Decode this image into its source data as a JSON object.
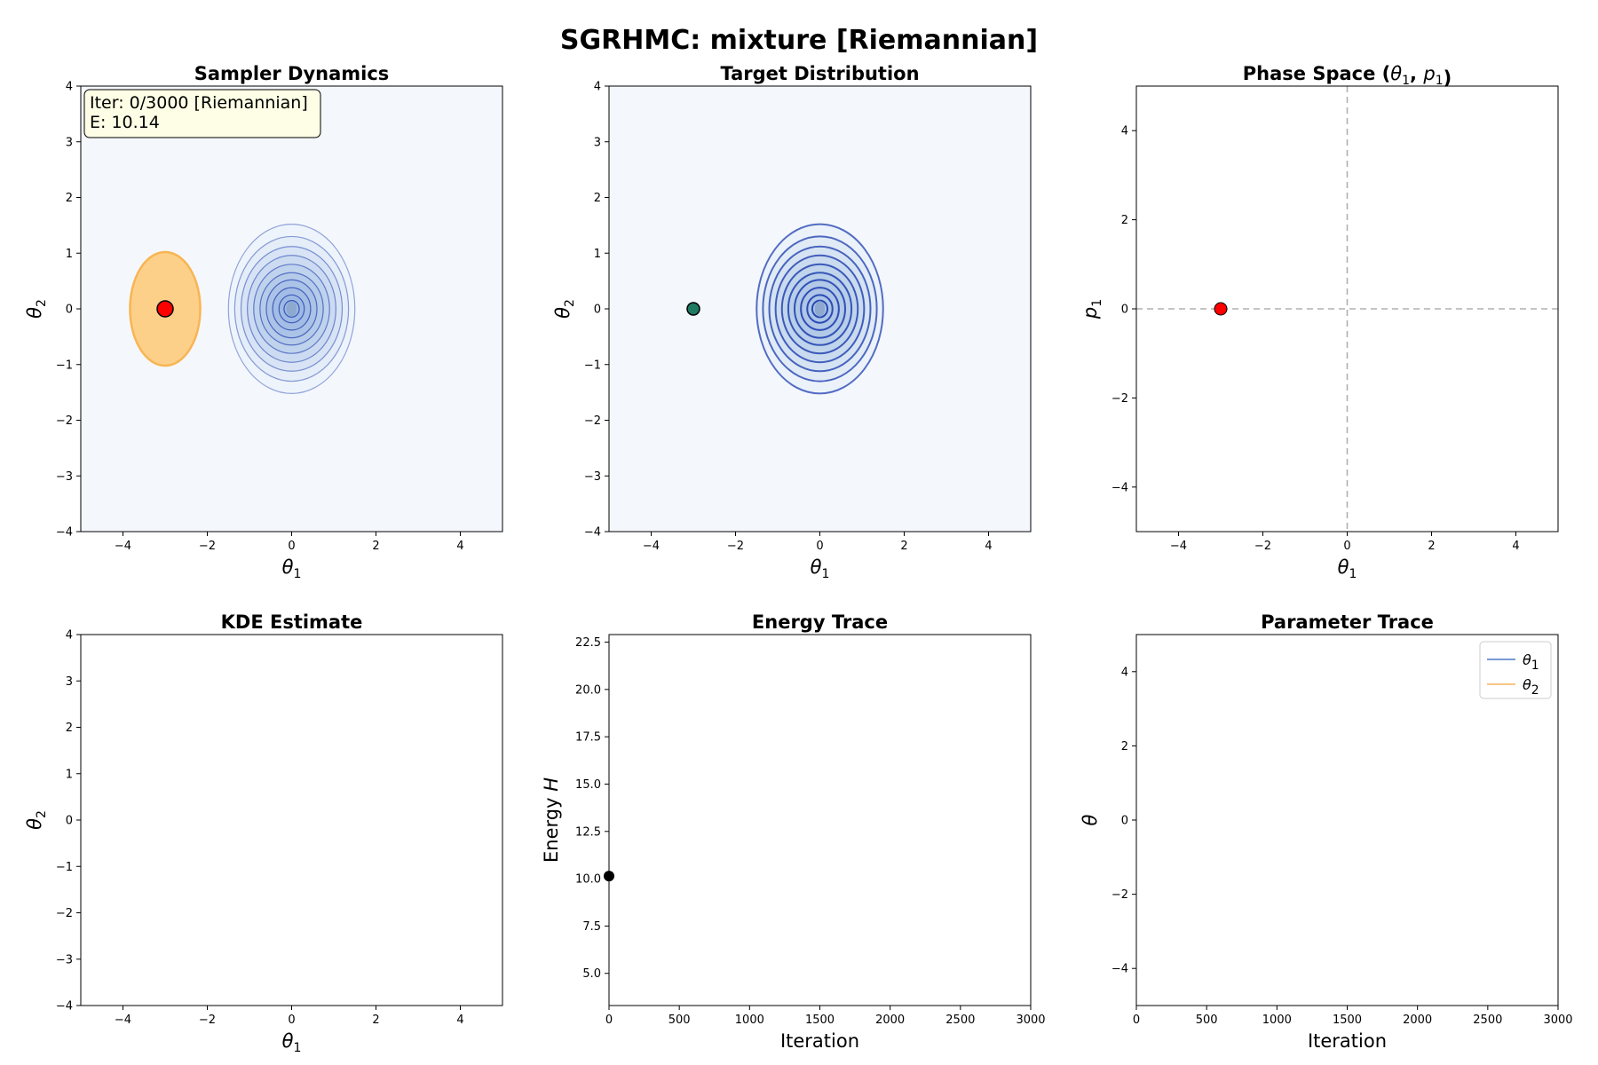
{
  "figure": {
    "title": "SGRHMC: mixture [Riemannian]"
  },
  "colors": {
    "density_fill": "#f4f8fd",
    "contour": "#1f3fb0",
    "contour_fill_center": "#8ea9cf",
    "sampler_point": "#ff0000",
    "target_point": "#1e7b62",
    "uncertainty_fill": "#fdd08a",
    "uncertainty_edge": "#f8b553",
    "theta1_line": "#4c78c8",
    "theta2_line": "#f7b45a",
    "info_box_bg": "#fefee6"
  },
  "chart_data": [
    {
      "id": "sampler",
      "type": "contour",
      "title": "Sampler Dynamics",
      "xlabel": "θ1",
      "ylabel": "θ2",
      "xlim": [
        -5,
        5
      ],
      "ylim": [
        -4,
        4
      ],
      "xticks": [
        -4,
        -2,
        0,
        2,
        4
      ],
      "yticks": [
        -4,
        -3,
        -2,
        -1,
        0,
        1,
        2,
        3,
        4
      ],
      "mode_center": [
        0,
        0
      ],
      "contour_semi_axes": [
        [
          1.5,
          1.52
        ],
        [
          1.35,
          1.3
        ],
        [
          1.2,
          1.12
        ],
        [
          1.05,
          0.96
        ],
        [
          0.9,
          0.8
        ],
        [
          0.75,
          0.65
        ],
        [
          0.6,
          0.52
        ],
        [
          0.45,
          0.38
        ],
        [
          0.3,
          0.25
        ],
        [
          0.18,
          0.15
        ]
      ],
      "current_point": [
        -3,
        0
      ],
      "uncertainty_ellipse": {
        "center": [
          -3,
          0
        ],
        "semi_axes": [
          0.85,
          0.85
        ]
      },
      "info_box": {
        "line1": "Iter: 0/3000 [Riemannian]",
        "line2": "E: 10.14"
      }
    },
    {
      "id": "target",
      "type": "contour",
      "title": "Target Distribution",
      "xlabel": "θ1",
      "ylabel": "θ2",
      "xlim": [
        -5,
        5
      ],
      "ylim": [
        -4,
        4
      ],
      "xticks": [
        -4,
        -2,
        0,
        2,
        4
      ],
      "yticks": [
        -4,
        -3,
        -2,
        -1,
        0,
        1,
        2,
        3,
        4
      ],
      "mode_center": [
        0,
        0
      ],
      "contour_semi_axes": [
        [
          1.5,
          1.52
        ],
        [
          1.35,
          1.3
        ],
        [
          1.2,
          1.12
        ],
        [
          1.05,
          0.96
        ],
        [
          0.9,
          0.8
        ],
        [
          0.75,
          0.65
        ],
        [
          0.6,
          0.52
        ],
        [
          0.45,
          0.38
        ],
        [
          0.3,
          0.25
        ],
        [
          0.18,
          0.15
        ]
      ],
      "current_point": [
        -3,
        0
      ]
    },
    {
      "id": "phase",
      "type": "scatter",
      "title_prefix": "Phase Space (",
      "title_suffix": ")",
      "title_vars": [
        "θ1",
        "p1"
      ],
      "xlabel": "θ1",
      "ylabel": "p1",
      "xlim": [
        -5,
        5
      ],
      "ylim": [
        -5,
        5
      ],
      "xticks": [
        -4,
        -2,
        0,
        2,
        4
      ],
      "yticks": [
        -4,
        -2,
        0,
        2,
        4
      ],
      "reference_lines": {
        "x": 0,
        "y": 0
      },
      "points": [
        [
          -3,
          0
        ]
      ]
    },
    {
      "id": "kde",
      "type": "heatmap",
      "title": "KDE Estimate",
      "xlabel": "θ1",
      "ylabel": "θ2",
      "xlim": [
        -5,
        5
      ],
      "ylim": [
        -4,
        4
      ],
      "xticks": [
        -4,
        -2,
        0,
        2,
        4
      ],
      "yticks": [
        -4,
        -3,
        -2,
        -1,
        0,
        1,
        2,
        3,
        4
      ],
      "values": []
    },
    {
      "id": "energy",
      "type": "line",
      "title": "Energy Trace",
      "xlabel": "Iteration",
      "ylabel": "Energy H",
      "xlim": [
        0,
        3000
      ],
      "ylim": [
        3.3,
        22.9
      ],
      "xticks": [
        0,
        500,
        1000,
        1500,
        2000,
        2500,
        3000
      ],
      "yticks": [
        5.0,
        7.5,
        10.0,
        12.5,
        15.0,
        17.5,
        20.0,
        22.5
      ],
      "points": [
        [
          0,
          10.14
        ]
      ]
    },
    {
      "id": "params",
      "type": "line",
      "title": "Parameter Trace",
      "xlabel": "Iteration",
      "ylabel": "θ",
      "xlim": [
        0,
        3000
      ],
      "ylim": [
        -5,
        5
      ],
      "xticks": [
        0,
        500,
        1000,
        1500,
        2000,
        2500,
        3000
      ],
      "yticks": [
        -4,
        -2,
        0,
        2,
        4
      ],
      "series": [
        {
          "name": "θ1",
          "values": []
        },
        {
          "name": "θ2",
          "values": []
        }
      ],
      "legend": "top-right"
    }
  ]
}
